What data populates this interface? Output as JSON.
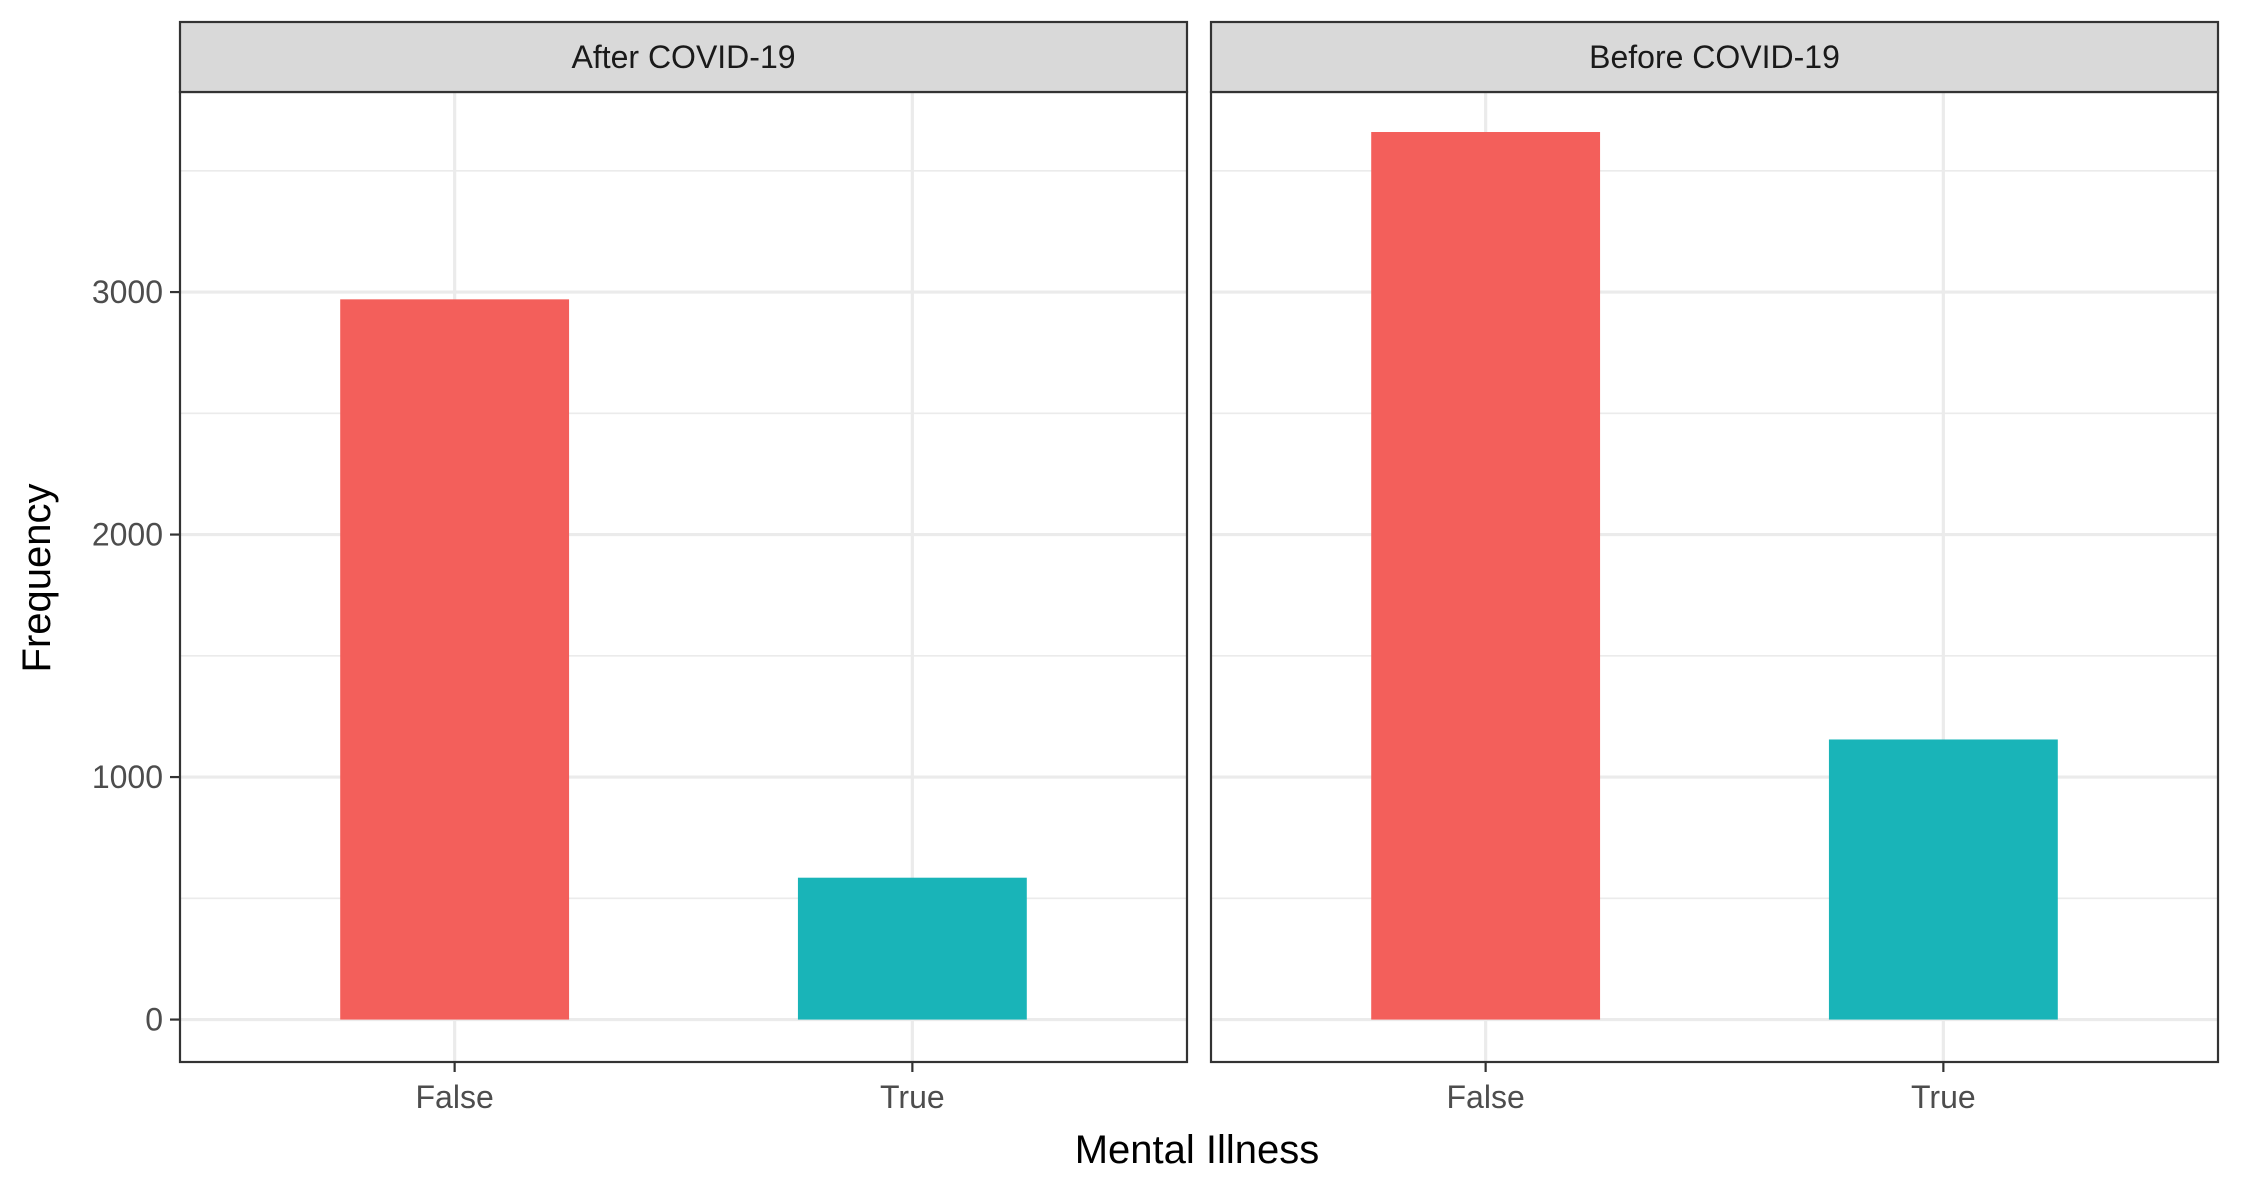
{
  "chart_data": {
    "type": "bar",
    "facet_by": "period",
    "xlabel": "Mental Illness",
    "ylabel": "Frequency",
    "categories": [
      "False",
      "True"
    ],
    "colors": {
      "False": "#F35F5B",
      "True": "#19B4B8"
    },
    "ylim": [
      -175,
      3825
    ],
    "yticks": [
      0,
      1000,
      2000,
      3000
    ],
    "grid": true,
    "legend": "none",
    "panels": [
      {
        "title": "After COVID-19",
        "values": [
          2970,
          585
        ]
      },
      {
        "title": "Before COVID-19",
        "values": [
          3660,
          1155
        ]
      }
    ]
  }
}
